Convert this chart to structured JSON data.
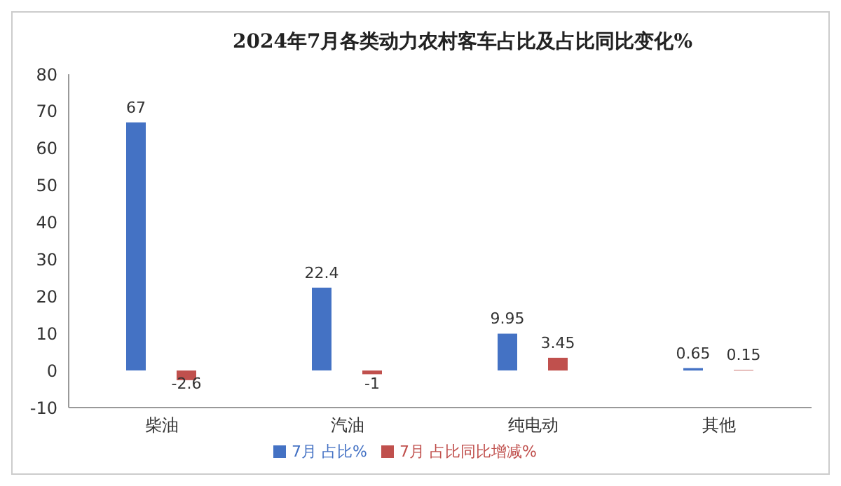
{
  "chart_data": {
    "type": "bar",
    "title": "2024年7月各类动力农村客车占比及占比同比变化%",
    "categories": [
      "柴油",
      "汽油",
      "纯电动",
      "其他"
    ],
    "series": [
      {
        "name": "7月 占比%",
        "color": "#4472c4",
        "values": [
          67,
          22.4,
          9.95,
          0.65
        ]
      },
      {
        "name": "7月 占比同比增减%",
        "color": "#c0504d",
        "values": [
          -2.6,
          -1,
          3.45,
          0.15
        ]
      }
    ],
    "ylim": [
      -10,
      80
    ],
    "yticks": [
      -10,
      0,
      10,
      20,
      30,
      40,
      50,
      60,
      70,
      80
    ],
    "data_labels": true,
    "legend": "bottom"
  }
}
